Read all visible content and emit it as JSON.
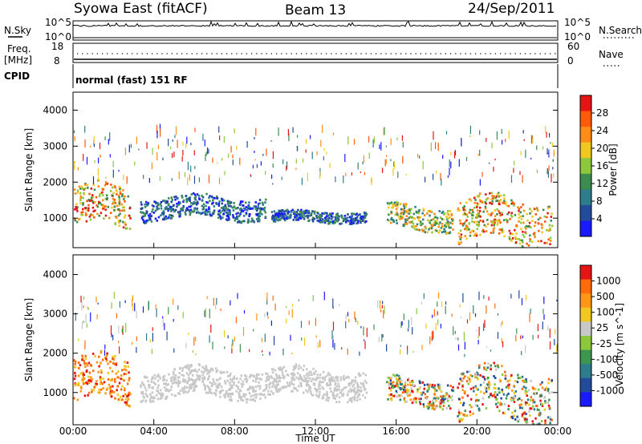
{
  "header": {
    "station": "Syowa East (fitACF)",
    "beam": "Beam 13",
    "date": "24/Sep/2011"
  },
  "panels": {
    "noise": {
      "left_label": "N.Sky",
      "right_label": "N.Search",
      "ticks_left": [
        "10^5",
        "10^0"
      ],
      "ticks_right": [
        "10^5",
        "10^0"
      ]
    },
    "freq": {
      "left_label": "Freq.",
      "left_unit": "[MHz]",
      "right_label": "Nave",
      "ticks_left": [
        "18",
        "8"
      ],
      "ticks_right": [
        "60",
        "0"
      ]
    },
    "cpid": {
      "label": "CPID",
      "text": "normal (fast) 151 RF"
    }
  },
  "chart_data": [
    {
      "type": "heatmap",
      "name": "power",
      "xlabel": "",
      "ylabel": "Slant Range [km]",
      "xlim": [
        0,
        24
      ],
      "ylim": [
        180,
        4500
      ],
      "yticks": [
        1000,
        2000,
        3000,
        4000
      ],
      "colorbar": {
        "label": "Power [dB]",
        "range": [
          0,
          32
        ],
        "ticks": [
          "4",
          "8",
          "12",
          "16",
          "20",
          "24",
          "28"
        ],
        "colors": [
          "#1a1aff",
          "#234b9b",
          "#2e7d8c",
          "#3c8c50",
          "#8cc83c",
          "#f0c81e",
          "#ff8c14",
          "#ff5a0a",
          "#e61414"
        ]
      },
      "features": [
        {
          "t": [
            0.0,
            2.8
          ],
          "range": [
            700,
            1800
          ],
          "level": "high"
        },
        {
          "t": [
            3.3,
            9.5
          ],
          "range": [
            950,
            1550
          ],
          "level": "low"
        },
        {
          "t": [
            9.8,
            14.5
          ],
          "range": [
            850,
            1150
          ],
          "level": "low"
        },
        {
          "t": [
            15.5,
            18.8
          ],
          "range": [
            650,
            1300
          ],
          "level": "medium"
        },
        {
          "t": [
            19.0,
            23.7
          ],
          "range": [
            300,
            1500
          ],
          "level": "high"
        }
      ]
    },
    {
      "type": "heatmap",
      "name": "velocity",
      "xlabel": "Time UT",
      "ylabel": "Slant Range [km]",
      "xlim": [
        0,
        24
      ],
      "ylim": [
        180,
        4500
      ],
      "xticks": [
        "00:00",
        "04:00",
        "08:00",
        "12:00",
        "16:00",
        "20:00",
        "00:00"
      ],
      "yticks": [
        1000,
        2000,
        3000,
        4000
      ],
      "colorbar": {
        "label": "Velocity [m s^-1]",
        "ticks": [
          "1000",
          "500",
          "100",
          "25",
          "-25",
          "-100",
          "-500",
          "-1000"
        ],
        "colors": [
          "#1a1aff",
          "#234b9b",
          "#2e7d8c",
          "#3c9650",
          "#8cc83c",
          "#c8c8c8",
          "#f0c81e",
          "#ff9614",
          "#ff6a0a",
          "#e61414"
        ]
      },
      "features": [
        {
          "t": [
            0.0,
            2.8
          ],
          "range": [
            700,
            1800
          ],
          "velocity": "negative"
        },
        {
          "t": [
            3.3,
            14.5
          ],
          "range": [
            850,
            1550
          ],
          "velocity": "near zero"
        },
        {
          "t": [
            15.5,
            18.8
          ],
          "range": [
            650,
            1300
          ],
          "velocity": "mixed"
        },
        {
          "t": [
            19.0,
            23.7
          ],
          "range": [
            300,
            1500
          ],
          "velocity": "mixed"
        }
      ]
    }
  ]
}
